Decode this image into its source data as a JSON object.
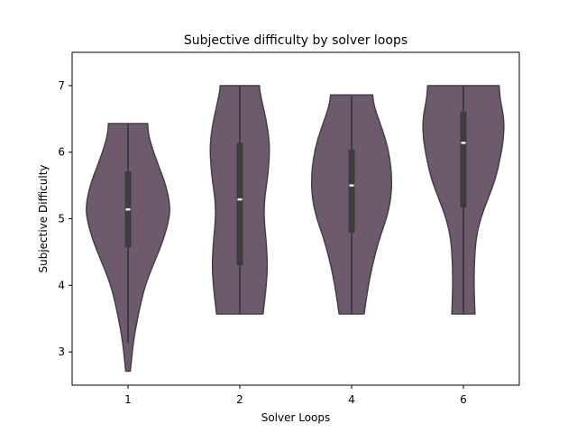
{
  "chart_data": {
    "type": "violin",
    "title": "Subjective difficulty by solver loops",
    "xlabel": "Solver Loops",
    "ylabel": "Subjective Difficulty",
    "categories": [
      "1",
      "2",
      "4",
      "6"
    ],
    "ylim": [
      2.5,
      7.5
    ],
    "yticks": [
      3,
      4,
      5,
      6,
      7
    ],
    "fill_color": "#6e5a6d",
    "edge_color": "#3d3d3d",
    "grid": false,
    "violins": [
      {
        "category": "1",
        "min": 2.71,
        "max": 6.43,
        "whisker_low": 3.14,
        "whisker_high": 6.43,
        "q1": 4.57,
        "median": 5.14,
        "q3": 5.71,
        "profile": [
          [
            2.71,
            0.05
          ],
          [
            2.9,
            0.08
          ],
          [
            3.2,
            0.13
          ],
          [
            3.6,
            0.24
          ],
          [
            4.0,
            0.38
          ],
          [
            4.4,
            0.62
          ],
          [
            4.7,
            0.8
          ],
          [
            5.0,
            0.92
          ],
          [
            5.2,
            0.94
          ],
          [
            5.5,
            0.85
          ],
          [
            5.8,
            0.68
          ],
          [
            6.1,
            0.52
          ],
          [
            6.3,
            0.45
          ],
          [
            6.43,
            0.44
          ]
        ]
      },
      {
        "category": "2",
        "min": 3.57,
        "max": 7.0,
        "whisker_low": 3.57,
        "whisker_high": 7.0,
        "q1": 4.3,
        "median": 5.29,
        "q3": 6.14,
        "profile": [
          [
            3.57,
            0.52
          ],
          [
            3.8,
            0.56
          ],
          [
            4.2,
            0.62
          ],
          [
            4.6,
            0.6
          ],
          [
            5.0,
            0.54
          ],
          [
            5.3,
            0.55
          ],
          [
            5.6,
            0.62
          ],
          [
            6.0,
            0.67
          ],
          [
            6.3,
            0.64
          ],
          [
            6.6,
            0.55
          ],
          [
            6.9,
            0.45
          ],
          [
            7.0,
            0.44
          ]
        ]
      },
      {
        "category": "4",
        "min": 3.57,
        "max": 6.86,
        "whisker_low": 3.57,
        "whisker_high": 6.86,
        "q1": 4.79,
        "median": 5.5,
        "q3": 6.04,
        "profile": [
          [
            3.57,
            0.28
          ],
          [
            3.9,
            0.35
          ],
          [
            4.3,
            0.46
          ],
          [
            4.7,
            0.62
          ],
          [
            5.0,
            0.78
          ],
          [
            5.3,
            0.88
          ],
          [
            5.6,
            0.9
          ],
          [
            5.9,
            0.86
          ],
          [
            6.2,
            0.76
          ],
          [
            6.5,
            0.6
          ],
          [
            6.7,
            0.5
          ],
          [
            6.86,
            0.47
          ]
        ]
      },
      {
        "category": "6",
        "min": 3.57,
        "max": 7.0,
        "whisker_low": 3.57,
        "whisker_high": 7.0,
        "q1": 5.17,
        "median": 6.14,
        "q3": 6.61,
        "profile": [
          [
            3.57,
            0.26
          ],
          [
            3.9,
            0.24
          ],
          [
            4.3,
            0.24
          ],
          [
            4.7,
            0.28
          ],
          [
            5.0,
            0.38
          ],
          [
            5.3,
            0.55
          ],
          [
            5.6,
            0.72
          ],
          [
            5.9,
            0.82
          ],
          [
            6.2,
            0.9
          ],
          [
            6.5,
            0.91
          ],
          [
            6.8,
            0.82
          ],
          [
            7.0,
            0.8
          ]
        ]
      }
    ]
  }
}
